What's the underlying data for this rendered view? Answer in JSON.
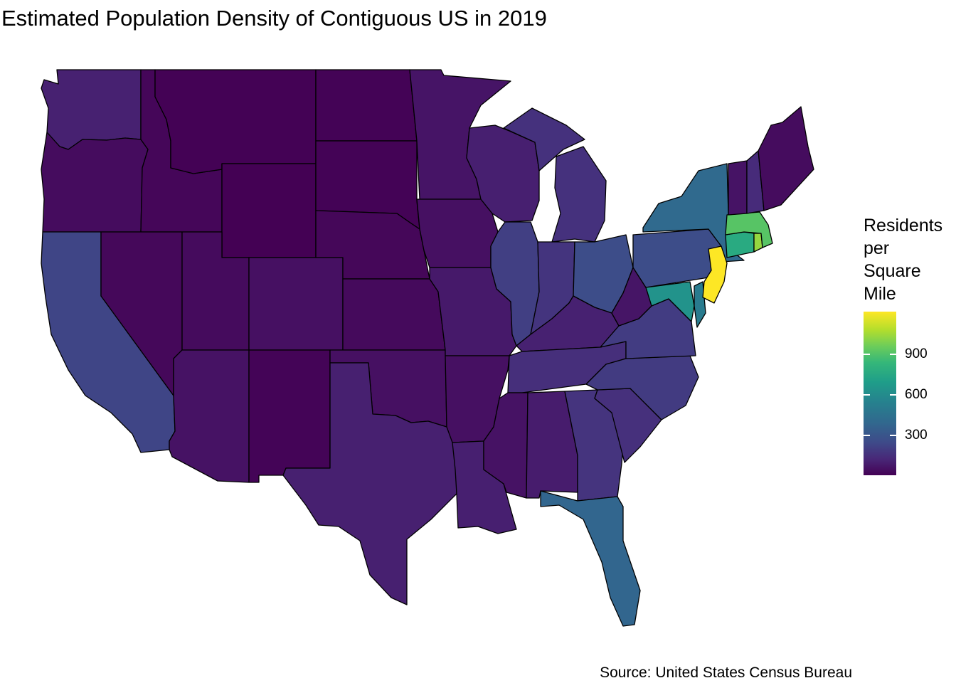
{
  "title": "Estimated Population Density of Contiguous US in 2019",
  "caption": "Source: United States Census Bureau",
  "legend": {
    "title_lines": [
      "Residents",
      "per",
      "Square",
      "Mile"
    ],
    "ticks": [
      {
        "value": 300,
        "label": "300"
      },
      {
        "value": 600,
        "label": "600"
      },
      {
        "value": 900,
        "label": "900"
      }
    ],
    "range": [
      5,
      1215
    ],
    "palette": "viridis"
  },
  "map_data": {
    "type": "choropleth",
    "measure": "Residents per Square Mile",
    "year": 2019,
    "states": [
      {
        "id": "WA",
        "name": "Washington",
        "density": 115
      },
      {
        "id": "OR",
        "name": "Oregon",
        "density": 44
      },
      {
        "id": "CA",
        "name": "California",
        "density": 254
      },
      {
        "id": "ID",
        "name": "Idaho",
        "density": 22
      },
      {
        "id": "NV",
        "name": "Nevada",
        "density": 28
      },
      {
        "id": "MT",
        "name": "Montana",
        "density": 7
      },
      {
        "id": "WY",
        "name": "Wyoming",
        "density": 6
      },
      {
        "id": "UT",
        "name": "Utah",
        "density": 39
      },
      {
        "id": "AZ",
        "name": "Arizona",
        "density": 64
      },
      {
        "id": "CO",
        "name": "Colorado",
        "density": 56
      },
      {
        "id": "NM",
        "name": "New Mexico",
        "density": 17
      },
      {
        "id": "ND",
        "name": "North Dakota",
        "density": 11
      },
      {
        "id": "SD",
        "name": "South Dakota",
        "density": 12
      },
      {
        "id": "NE",
        "name": "Nebraska",
        "density": 25
      },
      {
        "id": "KS",
        "name": "Kansas",
        "density": 36
      },
      {
        "id": "OK",
        "name": "Oklahoma",
        "density": 58
      },
      {
        "id": "TX",
        "name": "Texas",
        "density": 111
      },
      {
        "id": "MN",
        "name": "Minnesota",
        "density": 71
      },
      {
        "id": "IA",
        "name": "Iowa",
        "density": 57
      },
      {
        "id": "MO",
        "name": "Missouri",
        "density": 89
      },
      {
        "id": "AR",
        "name": "Arkansas",
        "density": 58
      },
      {
        "id": "LA",
        "name": "Louisiana",
        "density": 108
      },
      {
        "id": "WI",
        "name": "Wisconsin",
        "density": 108
      },
      {
        "id": "IL",
        "name": "Illinois",
        "density": 230
      },
      {
        "id": "MI",
        "name": "Michigan",
        "density": 177
      },
      {
        "id": "IN",
        "name": "Indiana",
        "density": 188
      },
      {
        "id": "OH",
        "name": "Ohio",
        "density": 287
      },
      {
        "id": "KY",
        "name": "Kentucky",
        "density": 114
      },
      {
        "id": "TN",
        "name": "Tennessee",
        "density": 167
      },
      {
        "id": "MS",
        "name": "Mississippi",
        "density": 63
      },
      {
        "id": "AL",
        "name": "Alabama",
        "density": 97
      },
      {
        "id": "GA",
        "name": "Georgia",
        "density": 185
      },
      {
        "id": "FL",
        "name": "Florida",
        "density": 401
      },
      {
        "id": "SC",
        "name": "South Carolina",
        "density": 171
      },
      {
        "id": "NC",
        "name": "North Carolina",
        "density": 214
      },
      {
        "id": "VA",
        "name": "Virginia",
        "density": 217
      },
      {
        "id": "WV",
        "name": "West Virginia",
        "density": 74
      },
      {
        "id": "PA",
        "name": "Pennsylvania",
        "density": 286
      },
      {
        "id": "NY",
        "name": "New York",
        "density": 419
      },
      {
        "id": "MD",
        "name": "Maryland",
        "density": 626
      },
      {
        "id": "DE",
        "name": "Delaware",
        "density": 504
      },
      {
        "id": "NJ",
        "name": "New Jersey",
        "density": 1215
      },
      {
        "id": "CT",
        "name": "Connecticut",
        "density": 741
      },
      {
        "id": "RI",
        "name": "Rhode Island",
        "density": 1021
      },
      {
        "id": "MA",
        "name": "Massachusetts",
        "density": 894
      },
      {
        "id": "VT",
        "name": "Vermont",
        "density": 68
      },
      {
        "id": "NH",
        "name": "New Hampshire",
        "density": 153
      },
      {
        "id": "ME",
        "name": "Maine",
        "density": 44
      }
    ]
  }
}
